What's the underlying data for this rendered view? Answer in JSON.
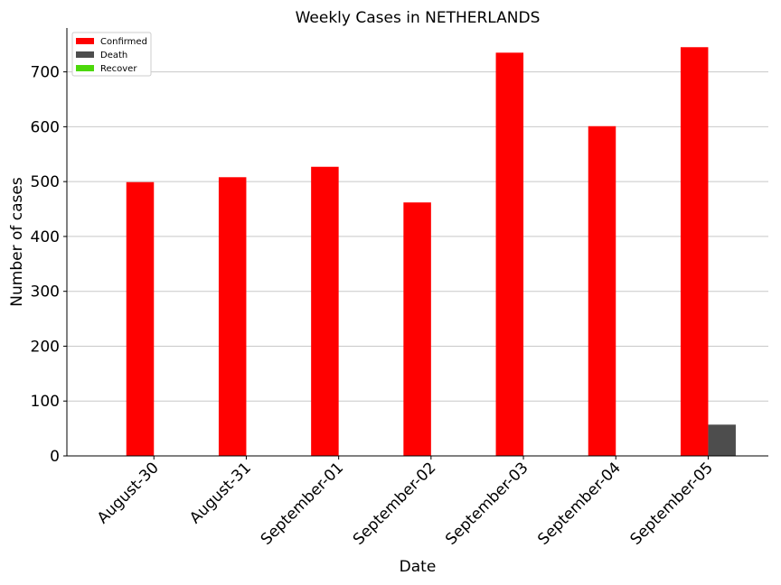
{
  "chart_data": {
    "type": "bar",
    "title": "Weekly Cases in NETHERLANDS",
    "xlabel": "Date",
    "ylabel": "Number of cases",
    "categories": [
      "August-30",
      "August-31",
      "September-01",
      "September-02",
      "September-03",
      "September-04",
      "September-05"
    ],
    "series": [
      {
        "name": "Confirmed",
        "color": "#ff0000",
        "values": [
          499,
          508,
          527,
          462,
          735,
          601,
          745
        ]
      },
      {
        "name": "Death",
        "color": "#4d4d4d",
        "values": [
          0,
          0,
          0,
          0,
          0,
          0,
          57
        ]
      },
      {
        "name": "Recover",
        "color": "#4cd80a",
        "values": [
          0,
          0,
          0,
          0,
          0,
          0,
          0
        ]
      }
    ],
    "ylim": [
      0,
      780
    ],
    "yticks": [
      0,
      100,
      200,
      300,
      400,
      500,
      600,
      700
    ],
    "grid": "horizontal",
    "legend": "top-left"
  }
}
